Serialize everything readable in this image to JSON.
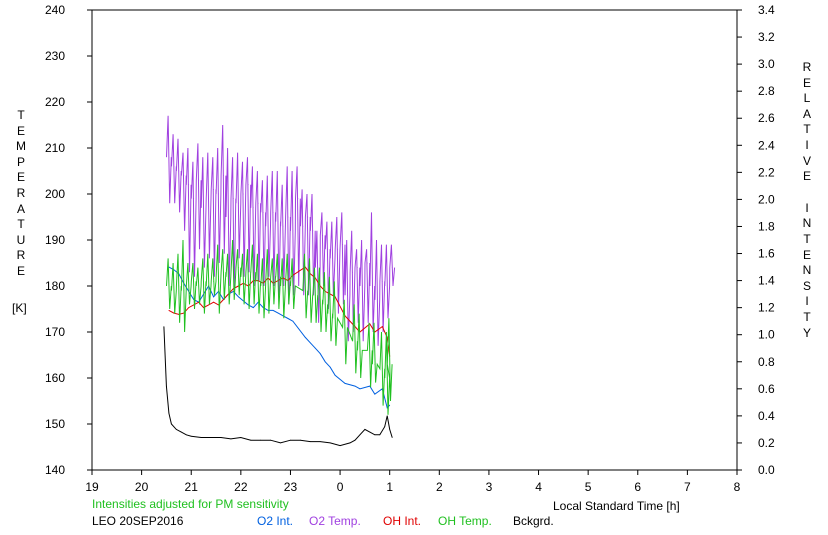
{
  "chart_data": {
    "type": "line",
    "station": "LEO 20SEP2016",
    "note": "Intensities adjusted for PM sensitivity",
    "xlabel": "Local Standard Time [h]",
    "ylabel_left": "TEMPERATURE",
    "ylabel_left_unit": "[K]",
    "ylabel_right": "RELATIVE INTENSITY",
    "x_ticks": [
      "19",
      "20",
      "21",
      "22",
      "23",
      "0",
      "1",
      "2",
      "3",
      "4",
      "5",
      "6",
      "7",
      "8"
    ],
    "y_left_ticks": [
      "140",
      "150",
      "160",
      "170",
      "180",
      "190",
      "200",
      "210",
      "220",
      "230",
      "240"
    ],
    "y_right_ticks": [
      "0.0",
      "0.2",
      "0.4",
      "0.6",
      "0.8",
      "1.0",
      "1.2",
      "1.4",
      "1.6",
      "1.8",
      "2.0",
      "2.2",
      "2.4",
      "2.6",
      "2.8",
      "3.0",
      "3.2",
      "3.4"
    ],
    "xlim": [
      19,
      32
    ],
    "ylim_left": [
      140,
      240
    ],
    "ylim_right": [
      0.0,
      3.4
    ],
    "grid": false,
    "legend": [
      {
        "label": "O2 Int.",
        "color": "#0060e0"
      },
      {
        "label": "O2 Temp.",
        "color": "#a040e0"
      },
      {
        "label": "OH Int.",
        "color": "#e00000"
      },
      {
        "label": "OH Temp.",
        "color": "#20c020"
      },
      {
        "label": "Bckgrd.",
        "color": "#000000"
      }
    ],
    "series": [
      {
        "name": "O2 Temp.",
        "axis": "left",
        "color": "#a040e0",
        "style": "spikes",
        "x": [
          20.55,
          20.65,
          20.75,
          20.85,
          20.95,
          21.05,
          21.15,
          21.25,
          21.35,
          21.45,
          21.55,
          21.65,
          21.75,
          21.85,
          21.95,
          22.05,
          22.15,
          22.25,
          22.35,
          22.45,
          22.55,
          22.65,
          22.75,
          22.85,
          22.95,
          23.05,
          23.15,
          23.25,
          23.35,
          23.45,
          23.55,
          23.65,
          23.75,
          23.85,
          23.95,
          24.05,
          24.15,
          24.25,
          24.35,
          24.45,
          24.55,
          24.65,
          24.75,
          24.85,
          24.95,
          25.05
        ],
        "y": [
          208,
          206,
          205,
          204,
          202,
          199,
          203,
          197,
          199,
          201,
          200,
          204,
          195,
          199,
          198,
          200,
          202,
          197,
          198,
          196,
          193,
          196,
          194,
          193,
          195,
          192,
          199,
          193,
          195,
          192,
          184,
          191,
          188,
          186,
          188,
          189,
          178,
          183,
          184,
          180,
          185,
          180,
          177,
          181,
          180,
          184
        ],
        "ylo": [
          198,
          198,
          196,
          192,
          183,
          182,
          188,
          184,
          186,
          182,
          185,
          187,
          180,
          178,
          186,
          182,
          183,
          180,
          181,
          180,
          182,
          180,
          178,
          180,
          176,
          178,
          180,
          178,
          178,
          178,
          172,
          180,
          175,
          178,
          174,
          176,
          168,
          170,
          172,
          168,
          172,
          170,
          167,
          170,
          173,
          180
        ],
        "yhi": [
          217,
          213,
          212,
          209,
          210,
          207,
          211,
          208,
          209,
          208,
          210,
          215,
          210,
          208,
          209,
          207,
          208,
          206,
          205,
          203,
          204,
          205,
          205,
          202,
          206,
          205,
          206,
          201,
          200,
          200,
          192,
          196,
          194,
          194,
          195,
          196,
          190,
          192,
          188,
          190,
          188,
          196,
          190,
          189,
          189,
          189
        ]
      },
      {
        "name": "O2 Int.",
        "axis": "right",
        "color": "#0060e0",
        "x": [
          20.55,
          20.65,
          20.75,
          20.85,
          20.95,
          21.05,
          21.15,
          21.25,
          21.35,
          21.45,
          21.55,
          21.65,
          21.75,
          21.85,
          21.95,
          22.05,
          22.15,
          22.25,
          22.35,
          22.45,
          22.55,
          22.65,
          22.75,
          22.85,
          22.95,
          23.05,
          23.3,
          23.4,
          23.5,
          23.6,
          23.7,
          23.8,
          23.9,
          24.1,
          24.3,
          24.4,
          24.6,
          24.7,
          24.85,
          24.95,
          25.0
        ],
        "y": [
          1.5,
          1.48,
          1.45,
          1.38,
          1.32,
          1.26,
          1.24,
          1.3,
          1.36,
          1.28,
          1.32,
          1.26,
          1.3,
          1.32,
          1.28,
          1.25,
          1.22,
          1.2,
          1.24,
          1.2,
          1.18,
          1.18,
          1.16,
          1.14,
          1.12,
          1.1,
          0.98,
          0.94,
          0.9,
          0.86,
          0.8,
          0.76,
          0.7,
          0.64,
          0.62,
          0.6,
          0.62,
          0.56,
          0.6,
          0.46,
          0.48
        ]
      },
      {
        "name": "OH Int.",
        "axis": "right",
        "color": "#e00000",
        "x": [
          20.55,
          20.65,
          20.75,
          20.85,
          20.95,
          21.05,
          21.15,
          21.25,
          21.35,
          21.45,
          21.55,
          21.65,
          21.75,
          21.85,
          21.95,
          22.05,
          22.15,
          22.25,
          22.35,
          22.45,
          22.55,
          22.65,
          22.75,
          22.85,
          22.95,
          23.05,
          23.3,
          23.4,
          23.5,
          23.6,
          23.7,
          23.8,
          23.9,
          24.1,
          24.3,
          24.4,
          24.6,
          24.7,
          24.85,
          24.95,
          25.0
        ],
        "y": [
          1.18,
          1.16,
          1.15,
          1.16,
          1.2,
          1.22,
          1.24,
          1.2,
          1.22,
          1.24,
          1.22,
          1.26,
          1.3,
          1.34,
          1.36,
          1.38,
          1.36,
          1.4,
          1.4,
          1.38,
          1.42,
          1.38,
          1.4,
          1.42,
          1.4,
          1.44,
          1.5,
          1.45,
          1.42,
          1.36,
          1.32,
          1.3,
          1.28,
          1.14,
          1.06,
          1.02,
          1.08,
          1.02,
          1.06,
          0.98,
          0.84
        ]
      },
      {
        "name": "OH Temp.",
        "axis": "left",
        "color": "#20c020",
        "style": "spikes",
        "x": [
          20.55,
          20.65,
          20.75,
          20.85,
          20.95,
          21.05,
          21.15,
          21.25,
          21.35,
          21.45,
          21.55,
          21.65,
          21.75,
          21.85,
          21.95,
          22.05,
          22.15,
          22.25,
          22.35,
          22.45,
          22.55,
          22.65,
          22.75,
          22.85,
          22.95,
          23.05,
          23.3,
          23.4,
          23.5,
          23.6,
          23.7,
          23.8,
          23.9,
          24.1,
          24.3,
          24.4,
          24.6,
          24.7,
          24.85,
          24.95,
          25.0
        ],
        "y": [
          180,
          179,
          180,
          179,
          180,
          181,
          180,
          181,
          180,
          181,
          182,
          183,
          182,
          183,
          184,
          182,
          183,
          183,
          181,
          180,
          181,
          182,
          182,
          180,
          181,
          180,
          179,
          178,
          178,
          177,
          176,
          174,
          173,
          171,
          168,
          166,
          166,
          163,
          162,
          160,
          163
        ],
        "ylo": [
          175,
          174,
          172,
          170,
          176,
          175,
          176,
          174,
          176,
          178,
          174,
          177,
          176,
          177,
          178,
          176,
          175,
          176,
          174,
          173,
          174,
          176,
          175,
          173,
          176,
          175,
          173,
          172,
          172,
          170,
          170,
          168,
          167,
          163,
          161,
          160,
          158,
          159,
          154,
          152,
          155
        ],
        "yhi": [
          186,
          185,
          187,
          190,
          185,
          185,
          184,
          186,
          187,
          186,
          189,
          188,
          187,
          190,
          188,
          187,
          188,
          189,
          187,
          186,
          188,
          186,
          187,
          186,
          187,
          186,
          187,
          186,
          184,
          184,
          183,
          182,
          181,
          177,
          176,
          174,
          172,
          172,
          170,
          170,
          173
        ]
      },
      {
        "name": "Bckgrd.",
        "axis": "right",
        "color": "#000000",
        "x": [
          20.45,
          20.5,
          20.55,
          20.6,
          20.7,
          20.8,
          20.9,
          21.0,
          21.2,
          21.4,
          21.6,
          21.8,
          22.0,
          22.2,
          22.4,
          22.6,
          22.8,
          23.0,
          23.2,
          23.4,
          23.6,
          23.8,
          24.0,
          24.2,
          24.3,
          24.4,
          24.5,
          24.6,
          24.7,
          24.8,
          24.9,
          24.95,
          25.0,
          25.05
        ],
        "y": [
          1.06,
          0.62,
          0.42,
          0.34,
          0.3,
          0.28,
          0.26,
          0.25,
          0.24,
          0.24,
          0.24,
          0.23,
          0.24,
          0.22,
          0.22,
          0.22,
          0.2,
          0.22,
          0.22,
          0.21,
          0.21,
          0.2,
          0.18,
          0.2,
          0.22,
          0.26,
          0.3,
          0.28,
          0.26,
          0.26,
          0.32,
          0.4,
          0.3,
          0.24
        ]
      }
    ]
  }
}
